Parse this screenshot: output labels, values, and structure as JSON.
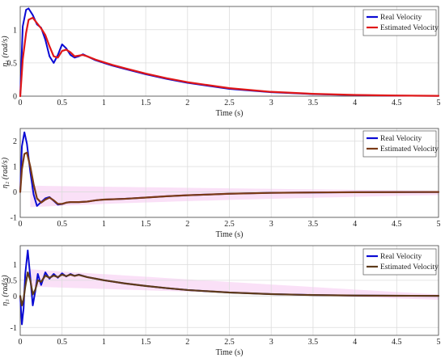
{
  "colors": {
    "real": "#0a0ad4",
    "estimated": "#e01818",
    "estimated_p2": "#7a3a16",
    "estimated_p3": "#5e3a1a",
    "band": "#f6c6f0",
    "grid": "#dcdcdc",
    "axis": "#444444"
  },
  "chart_data": [
    {
      "type": "line",
      "xlabel": "Time (s)",
      "ylabel": "η₁ (rad/s)",
      "xlim": [
        0,
        5
      ],
      "ylim": [
        0,
        1.35
      ],
      "xticks": [
        "0",
        "0.5",
        "1",
        "1.5",
        "2",
        "2.5",
        "3",
        "3.5",
        "4",
        "4.5",
        "5"
      ],
      "yticks": [
        "0",
        "0.5",
        "1"
      ],
      "ytick_values": [
        0,
        0.5,
        1
      ],
      "grid": true,
      "legend": "top-right",
      "band": false,
      "series": [
        {
          "name": "Real Velocity",
          "color": "real",
          "x": [
            0,
            0.03,
            0.07,
            0.1,
            0.15,
            0.2,
            0.25,
            0.3,
            0.35,
            0.4,
            0.45,
            0.5,
            0.55,
            0.6,
            0.65,
            0.7,
            0.75,
            0.8,
            0.9,
            1.0,
            1.1,
            1.25,
            1.5,
            1.75,
            2.0,
            2.5,
            3.0,
            3.5,
            4.0,
            4.5,
            5.0
          ],
          "y": [
            0,
            1.05,
            1.3,
            1.32,
            1.22,
            1.08,
            1.03,
            0.85,
            0.6,
            0.5,
            0.62,
            0.78,
            0.72,
            0.62,
            0.58,
            0.6,
            0.63,
            0.6,
            0.54,
            0.5,
            0.46,
            0.41,
            0.33,
            0.26,
            0.2,
            0.11,
            0.06,
            0.03,
            0.015,
            0.008,
            0.004
          ]
        },
        {
          "name": "Estimated Velocity",
          "color": "estimated",
          "x": [
            0,
            0.03,
            0.07,
            0.1,
            0.15,
            0.2,
            0.25,
            0.3,
            0.35,
            0.4,
            0.45,
            0.5,
            0.55,
            0.6,
            0.65,
            0.7,
            0.75,
            0.8,
            0.9,
            1.0,
            1.1,
            1.25,
            1.5,
            1.75,
            2.0,
            2.5,
            3.0,
            3.5,
            4.0,
            4.5,
            5.0
          ],
          "y": [
            0,
            0.55,
            0.95,
            1.15,
            1.18,
            1.1,
            1.02,
            0.92,
            0.75,
            0.6,
            0.58,
            0.68,
            0.7,
            0.66,
            0.6,
            0.61,
            0.62,
            0.6,
            0.55,
            0.51,
            0.47,
            0.42,
            0.34,
            0.27,
            0.21,
            0.12,
            0.065,
            0.035,
            0.018,
            0.009,
            0.005
          ]
        }
      ]
    },
    {
      "type": "line",
      "xlabel": "Time (s)",
      "ylabel": "η₂ (rad/s)",
      "xlim": [
        0,
        5
      ],
      "ylim": [
        -1,
        2.5
      ],
      "xticks": [
        "0",
        "0.5",
        "1",
        "1.5",
        "2",
        "2.5",
        "3",
        "3.5",
        "4",
        "4.5",
        "5"
      ],
      "yticks": [
        "-1",
        "0",
        "1",
        "2"
      ],
      "ytick_values": [
        -1,
        0,
        1,
        2
      ],
      "grid": true,
      "legend": "top-right",
      "band": true,
      "series": [
        {
          "name": "Real Velocity",
          "color": "real",
          "x": [
            0,
            0.02,
            0.05,
            0.08,
            0.12,
            0.16,
            0.2,
            0.25,
            0.3,
            0.35,
            0.4,
            0.45,
            0.5,
            0.55,
            0.6,
            0.7,
            0.8,
            0.9,
            1.0,
            1.25,
            1.5,
            1.75,
            2.0,
            2.5,
            3.0,
            3.5,
            4.0,
            4.5,
            5.0
          ],
          "y": [
            0,
            1.8,
            2.35,
            1.9,
            0.8,
            -0.1,
            -0.55,
            -0.4,
            -0.25,
            -0.2,
            -0.35,
            -0.5,
            -0.48,
            -0.42,
            -0.4,
            -0.4,
            -0.38,
            -0.33,
            -0.3,
            -0.27,
            -0.22,
            -0.17,
            -0.13,
            -0.07,
            -0.035,
            -0.02,
            -0.01,
            -0.005,
            -0.002
          ]
        },
        {
          "name": "Estimated Velocity",
          "color": "estimated",
          "x": [
            0,
            0.02,
            0.05,
            0.08,
            0.12,
            0.16,
            0.2,
            0.25,
            0.3,
            0.35,
            0.4,
            0.45,
            0.5,
            0.55,
            0.6,
            0.7,
            0.8,
            0.9,
            1.0,
            1.25,
            1.5,
            1.75,
            2.0,
            2.5,
            3.0,
            3.5,
            4.0,
            4.5,
            5.0
          ],
          "y": [
            0,
            0.9,
            1.5,
            1.55,
            1.0,
            0.3,
            -0.25,
            -0.42,
            -0.3,
            -0.22,
            -0.33,
            -0.47,
            -0.47,
            -0.42,
            -0.4,
            -0.4,
            -0.38,
            -0.33,
            -0.3,
            -0.27,
            -0.22,
            -0.17,
            -0.13,
            -0.07,
            -0.035,
            -0.02,
            -0.01,
            -0.005,
            -0.002
          ]
        }
      ]
    },
    {
      "type": "line",
      "xlabel": "Time (s)",
      "ylabel": "η₃ (rad/s)",
      "xlim": [
        0,
        5
      ],
      "ylim": [
        -1.25,
        1.6
      ],
      "xticks": [
        "0",
        "0.5",
        "1",
        "1.5",
        "2",
        "2.5",
        "3",
        "3.5",
        "4",
        "4.5",
        "5"
      ],
      "yticks": [
        "-1",
        "0",
        "0.5",
        "1"
      ],
      "ytick_values": [
        -1,
        0,
        0.5,
        1
      ],
      "grid": true,
      "legend": "top-right",
      "band": true,
      "series": [
        {
          "name": "Real Velocity",
          "color": "real",
          "x": [
            0,
            0.02,
            0.04,
            0.06,
            0.09,
            0.12,
            0.15,
            0.18,
            0.21,
            0.25,
            0.3,
            0.35,
            0.4,
            0.45,
            0.5,
            0.55,
            0.6,
            0.65,
            0.7,
            0.8,
            0.9,
            1.0,
            1.25,
            1.5,
            1.75,
            2.0,
            2.5,
            3.0,
            3.5,
            4.0,
            4.5,
            5.0
          ],
          "y": [
            0,
            -0.9,
            -0.4,
            0.7,
            1.45,
            0.6,
            -0.3,
            0.15,
            0.7,
            0.35,
            0.75,
            0.55,
            0.7,
            0.58,
            0.72,
            0.62,
            0.7,
            0.64,
            0.68,
            0.6,
            0.55,
            0.5,
            0.4,
            0.32,
            0.25,
            0.19,
            0.11,
            0.06,
            0.03,
            0.015,
            0.008,
            0.004
          ]
        },
        {
          "name": "Estimated Velocity",
          "color": "estimated",
          "x": [
            0,
            0.02,
            0.04,
            0.06,
            0.09,
            0.12,
            0.15,
            0.18,
            0.21,
            0.25,
            0.3,
            0.35,
            0.4,
            0.45,
            0.5,
            0.55,
            0.6,
            0.65,
            0.7,
            0.8,
            0.9,
            1.0,
            1.25,
            1.5,
            1.75,
            2.0,
            2.5,
            3.0,
            3.5,
            4.0,
            4.5,
            5.0
          ],
          "y": [
            0,
            -0.3,
            -0.1,
            0.3,
            0.75,
            0.5,
            0.05,
            0.2,
            0.5,
            0.45,
            0.65,
            0.58,
            0.65,
            0.6,
            0.68,
            0.63,
            0.68,
            0.64,
            0.67,
            0.6,
            0.55,
            0.5,
            0.4,
            0.32,
            0.25,
            0.19,
            0.11,
            0.06,
            0.03,
            0.015,
            0.008,
            0.004
          ]
        }
      ]
    }
  ]
}
